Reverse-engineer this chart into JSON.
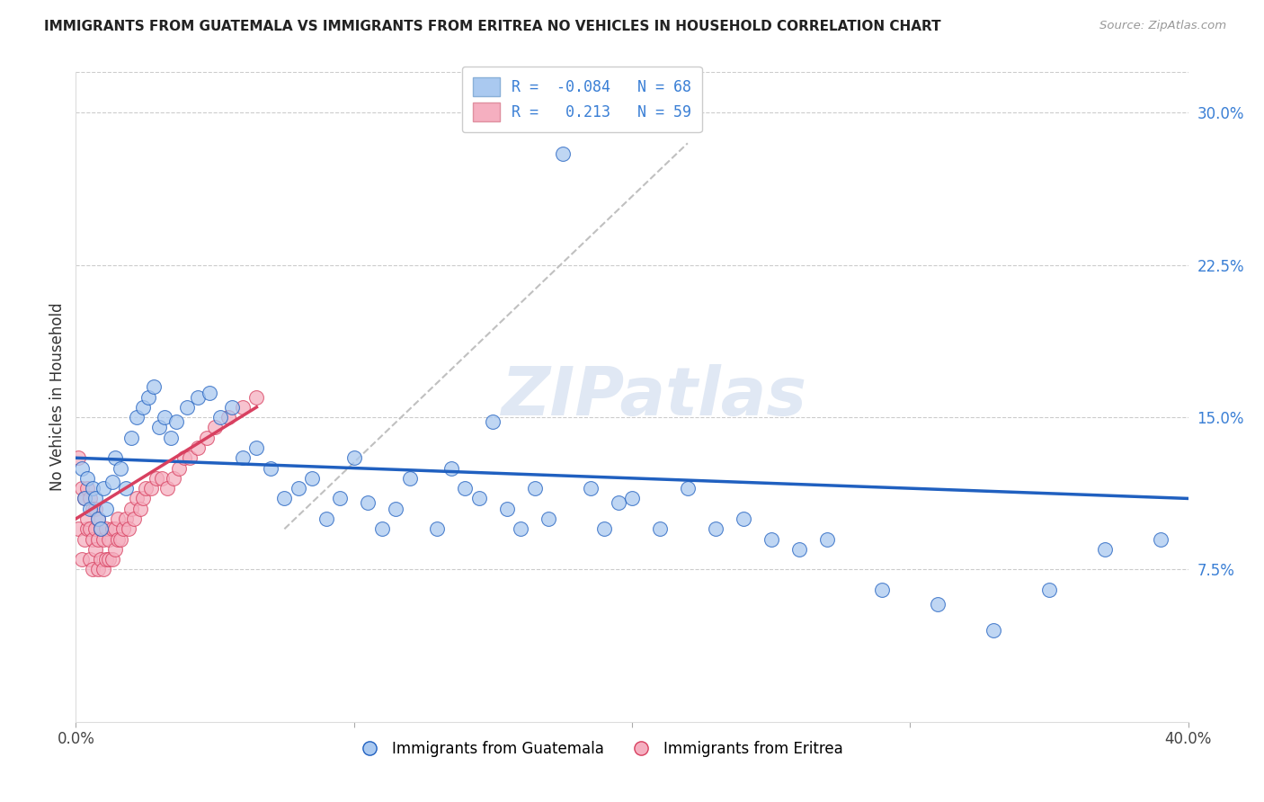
{
  "title": "IMMIGRANTS FROM GUATEMALA VS IMMIGRANTS FROM ERITREA NO VEHICLES IN HOUSEHOLD CORRELATION CHART",
  "source": "Source: ZipAtlas.com",
  "ylabel": "No Vehicles in Household",
  "xlim": [
    0.0,
    0.4
  ],
  "ylim": [
    0.0,
    0.32
  ],
  "xticks": [
    0.0,
    0.1,
    0.2,
    0.3,
    0.4
  ],
  "xtick_labels": [
    "0.0%",
    "",
    "",
    "",
    "40.0%"
  ],
  "yticks_right": [
    0.075,
    0.15,
    0.225,
    0.3
  ],
  "ytick_labels_right": [
    "7.5%",
    "15.0%",
    "22.5%",
    "30.0%"
  ],
  "R_guatemala": -0.084,
  "N_guatemala": 68,
  "R_eritrea": 0.213,
  "N_eritrea": 59,
  "guatemala_color": "#aac9f0",
  "eritrea_color": "#f5afc0",
  "trend_line_guatemala_color": "#2060c0",
  "trend_line_eritrea_color": "#d84060",
  "watermark": "ZIPatlas",
  "guatemala_x": [
    0.002,
    0.003,
    0.004,
    0.005,
    0.006,
    0.007,
    0.008,
    0.009,
    0.01,
    0.011,
    0.013,
    0.014,
    0.016,
    0.018,
    0.02,
    0.022,
    0.024,
    0.026,
    0.028,
    0.03,
    0.032,
    0.034,
    0.036,
    0.04,
    0.044,
    0.048,
    0.052,
    0.056,
    0.06,
    0.065,
    0.07,
    0.075,
    0.08,
    0.085,
    0.09,
    0.095,
    0.1,
    0.105,
    0.11,
    0.115,
    0.12,
    0.13,
    0.135,
    0.14,
    0.145,
    0.15,
    0.155,
    0.16,
    0.165,
    0.17,
    0.175,
    0.185,
    0.19,
    0.195,
    0.2,
    0.21,
    0.22,
    0.23,
    0.24,
    0.25,
    0.26,
    0.27,
    0.29,
    0.31,
    0.33,
    0.35,
    0.37,
    0.39
  ],
  "guatemala_y": [
    0.125,
    0.11,
    0.12,
    0.105,
    0.115,
    0.11,
    0.1,
    0.095,
    0.115,
    0.105,
    0.118,
    0.13,
    0.125,
    0.115,
    0.14,
    0.15,
    0.155,
    0.16,
    0.165,
    0.145,
    0.15,
    0.14,
    0.148,
    0.155,
    0.16,
    0.162,
    0.15,
    0.155,
    0.13,
    0.135,
    0.125,
    0.11,
    0.115,
    0.12,
    0.1,
    0.11,
    0.13,
    0.108,
    0.095,
    0.105,
    0.12,
    0.095,
    0.125,
    0.115,
    0.11,
    0.148,
    0.105,
    0.095,
    0.115,
    0.1,
    0.28,
    0.115,
    0.095,
    0.108,
    0.11,
    0.095,
    0.115,
    0.095,
    0.1,
    0.09,
    0.085,
    0.09,
    0.065,
    0.058,
    0.045,
    0.065,
    0.085,
    0.09
  ],
  "eritrea_x": [
    0.001,
    0.001,
    0.002,
    0.002,
    0.003,
    0.003,
    0.004,
    0.004,
    0.004,
    0.005,
    0.005,
    0.005,
    0.006,
    0.006,
    0.006,
    0.007,
    0.007,
    0.007,
    0.008,
    0.008,
    0.008,
    0.009,
    0.009,
    0.01,
    0.01,
    0.011,
    0.011,
    0.012,
    0.012,
    0.013,
    0.013,
    0.014,
    0.014,
    0.015,
    0.015,
    0.016,
    0.017,
    0.018,
    0.019,
    0.02,
    0.021,
    0.022,
    0.023,
    0.024,
    0.025,
    0.027,
    0.029,
    0.031,
    0.033,
    0.035,
    0.037,
    0.039,
    0.041,
    0.044,
    0.047,
    0.05,
    0.055,
    0.06,
    0.065
  ],
  "eritrea_y": [
    0.095,
    0.13,
    0.08,
    0.115,
    0.09,
    0.11,
    0.095,
    0.1,
    0.115,
    0.08,
    0.095,
    0.11,
    0.075,
    0.09,
    0.105,
    0.085,
    0.095,
    0.105,
    0.075,
    0.09,
    0.1,
    0.08,
    0.095,
    0.075,
    0.09,
    0.08,
    0.095,
    0.08,
    0.09,
    0.08,
    0.095,
    0.085,
    0.095,
    0.09,
    0.1,
    0.09,
    0.095,
    0.1,
    0.095,
    0.105,
    0.1,
    0.11,
    0.105,
    0.11,
    0.115,
    0.115,
    0.12,
    0.12,
    0.115,
    0.12,
    0.125,
    0.13,
    0.13,
    0.135,
    0.14,
    0.145,
    0.15,
    0.155,
    0.16
  ],
  "dashed_line_x": [
    0.075,
    0.22
  ],
  "dashed_line_y": [
    0.095,
    0.285
  ]
}
